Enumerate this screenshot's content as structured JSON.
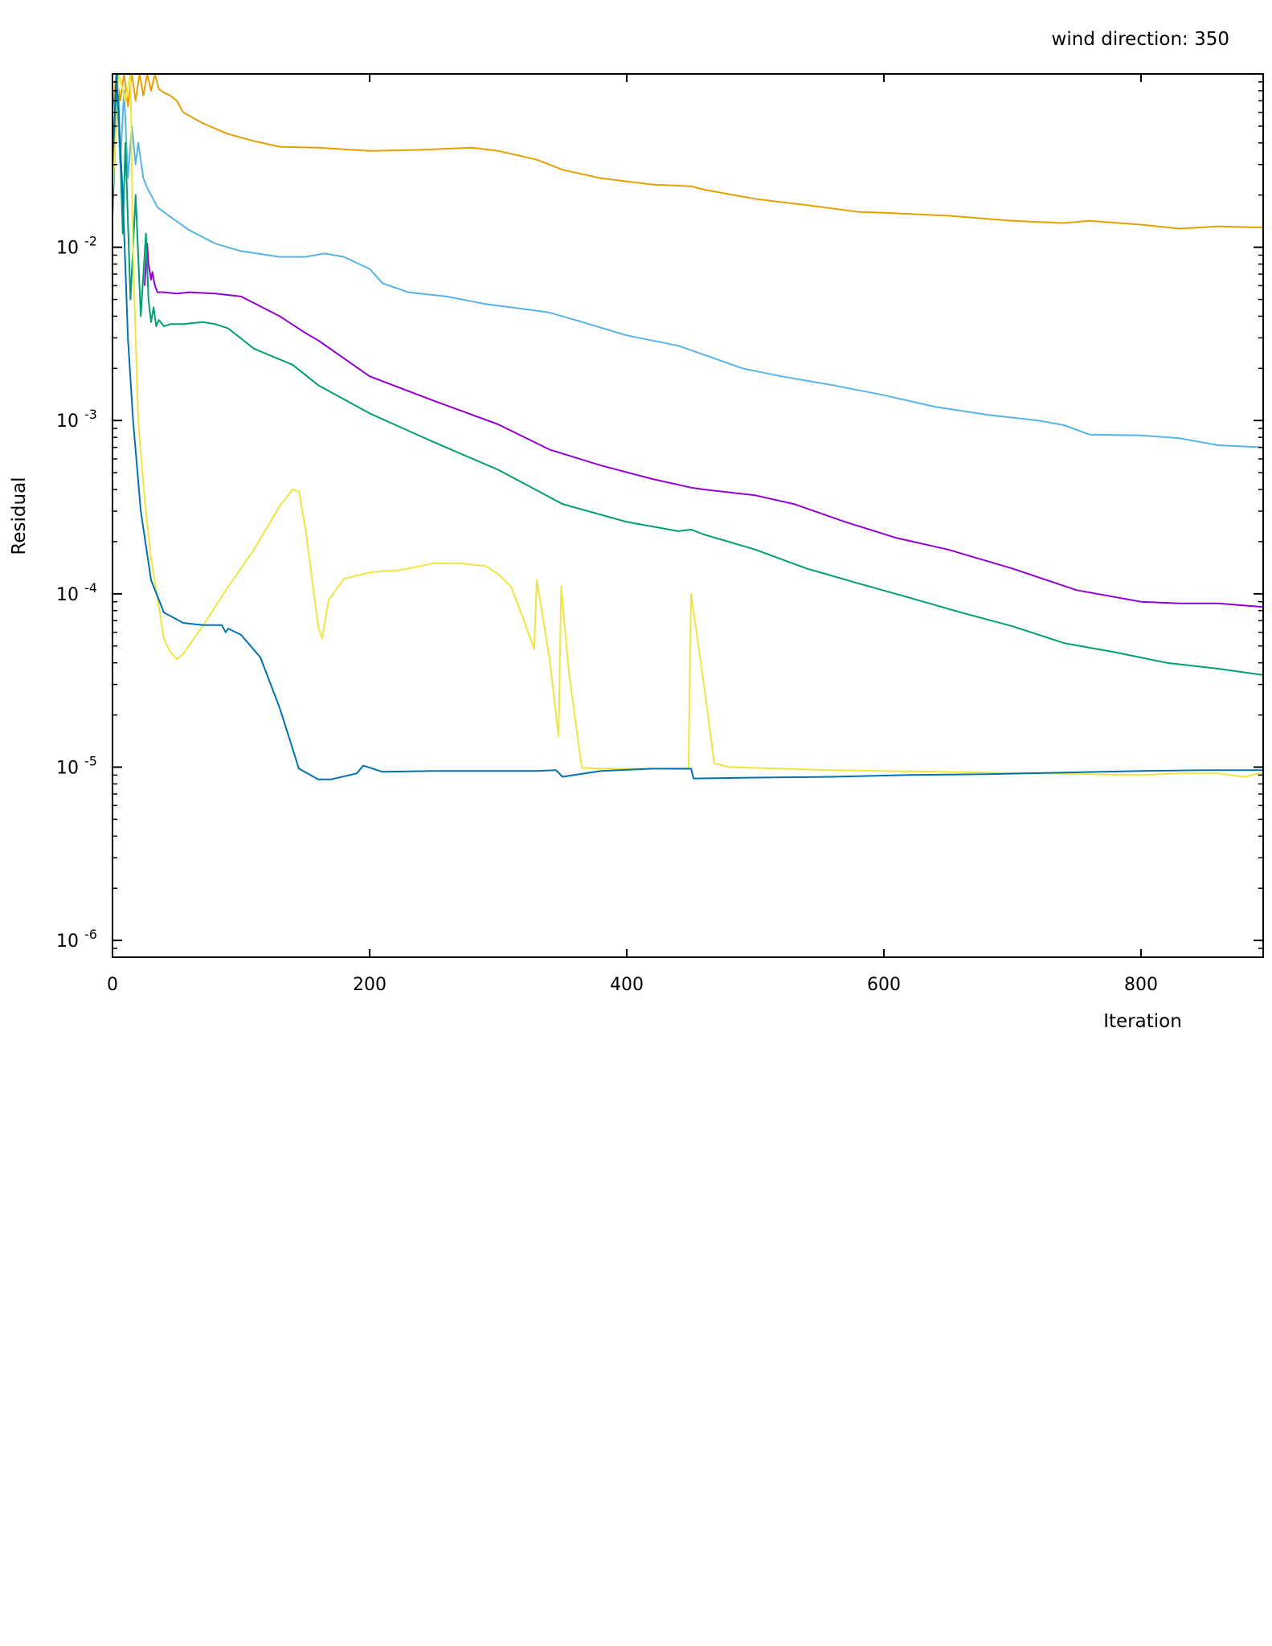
{
  "chart_data": {
    "type": "line",
    "title": "wind direction: 350",
    "xlabel": "Iteration",
    "ylabel": "Residual",
    "xlim": [
      0,
      895
    ],
    "ylim": [
      8e-07,
      0.1
    ],
    "yscale": "log",
    "grid": false,
    "legend": "none",
    "x_ticks": [
      {
        "value": 0,
        "label": "0"
      },
      {
        "value": 200,
        "label": "200"
      },
      {
        "value": 400,
        "label": "400"
      },
      {
        "value": 600,
        "label": "600"
      },
      {
        "value": 800,
        "label": "800"
      }
    ],
    "y_ticks": [
      {
        "value": 0.01,
        "base": "10",
        "exp": "-2"
      },
      {
        "value": 0.001,
        "base": "10",
        "exp": "-3"
      },
      {
        "value": 0.0001,
        "base": "10",
        "exp": "-4"
      },
      {
        "value": 1e-05,
        "base": "10",
        "exp": "-5"
      },
      {
        "value": 1e-06,
        "base": "10",
        "exp": "-6"
      }
    ],
    "series": [
      {
        "color": "#e69f00",
        "points": [
          [
            0,
            0.06
          ],
          [
            3,
            0.1
          ],
          [
            6,
            0.07
          ],
          [
            9,
            0.1
          ],
          [
            12,
            0.065
          ],
          [
            15,
            0.1
          ],
          [
            18,
            0.07
          ],
          [
            21,
            0.1
          ],
          [
            24,
            0.075
          ],
          [
            27,
            0.1
          ],
          [
            30,
            0.08
          ],
          [
            33,
            0.1
          ],
          [
            36,
            0.082
          ],
          [
            40,
            0.078
          ],
          [
            45,
            0.075
          ],
          [
            50,
            0.07
          ],
          [
            55,
            0.06
          ],
          [
            70,
            0.052
          ],
          [
            90,
            0.045
          ],
          [
            110,
            0.041
          ],
          [
            130,
            0.038
          ],
          [
            160,
            0.0375
          ],
          [
            200,
            0.036
          ],
          [
            240,
            0.0365
          ],
          [
            280,
            0.0375
          ],
          [
            300,
            0.036
          ],
          [
            330,
            0.032
          ],
          [
            350,
            0.028
          ],
          [
            380,
            0.025
          ],
          [
            420,
            0.023
          ],
          [
            450,
            0.0225
          ],
          [
            460,
            0.0215
          ],
          [
            500,
            0.019
          ],
          [
            540,
            0.0175
          ],
          [
            580,
            0.016
          ],
          [
            600,
            0.0158
          ],
          [
            650,
            0.0152
          ],
          [
            700,
            0.0142
          ],
          [
            740,
            0.0138
          ],
          [
            760,
            0.0142
          ],
          [
            800,
            0.0135
          ],
          [
            830,
            0.0128
          ],
          [
            860,
            0.0132
          ],
          [
            895,
            0.013
          ]
        ]
      },
      {
        "color": "#56b4e9",
        "points": [
          [
            0,
            0.02
          ],
          [
            3,
            0.1
          ],
          [
            6,
            0.03
          ],
          [
            9,
            0.08
          ],
          [
            12,
            0.025
          ],
          [
            15,
            0.05
          ],
          [
            18,
            0.03
          ],
          [
            20,
            0.04
          ],
          [
            24,
            0.025
          ],
          [
            27,
            0.022
          ],
          [
            30,
            0.02
          ],
          [
            35,
            0.017
          ],
          [
            45,
            0.015
          ],
          [
            60,
            0.0125
          ],
          [
            80,
            0.0105
          ],
          [
            100,
            0.0095
          ],
          [
            130,
            0.0088
          ],
          [
            150,
            0.0088
          ],
          [
            165,
            0.0092
          ],
          [
            180,
            0.0088
          ],
          [
            200,
            0.0075
          ],
          [
            210,
            0.0062
          ],
          [
            230,
            0.0055
          ],
          [
            260,
            0.0052
          ],
          [
            290,
            0.0047
          ],
          [
            320,
            0.0044
          ],
          [
            340,
            0.0042
          ],
          [
            360,
            0.0038
          ],
          [
            400,
            0.0031
          ],
          [
            440,
            0.0027
          ],
          [
            460,
            0.0024
          ],
          [
            490,
            0.002
          ],
          [
            520,
            0.0018
          ],
          [
            560,
            0.0016
          ],
          [
            600,
            0.0014
          ],
          [
            640,
            0.0012
          ],
          [
            680,
            0.00108
          ],
          [
            720,
            0.001
          ],
          [
            740,
            0.00094
          ],
          [
            760,
            0.00083
          ],
          [
            800,
            0.00082
          ],
          [
            830,
            0.00079
          ],
          [
            860,
            0.00072
          ],
          [
            895,
            0.0007
          ]
        ]
      },
      {
        "color": "#9400d3",
        "points": [
          [
            25,
            0.006
          ],
          [
            27,
            0.0105
          ],
          [
            28,
            0.008
          ],
          [
            30,
            0.0065
          ],
          [
            31,
            0.0072
          ],
          [
            33,
            0.006
          ],
          [
            35,
            0.0055
          ],
          [
            40,
            0.0055
          ],
          [
            50,
            0.0054
          ],
          [
            60,
            0.0055
          ],
          [
            80,
            0.0054
          ],
          [
            100,
            0.0052
          ],
          [
            130,
            0.004
          ],
          [
            150,
            0.0032
          ],
          [
            160,
            0.0029
          ],
          [
            200,
            0.0018
          ],
          [
            250,
            0.0013
          ],
          [
            300,
            0.00095
          ],
          [
            340,
            0.00068
          ],
          [
            380,
            0.00055
          ],
          [
            420,
            0.00046
          ],
          [
            450,
            0.00041
          ],
          [
            460,
            0.0004
          ],
          [
            500,
            0.00037
          ],
          [
            530,
            0.00033
          ],
          [
            570,
            0.00026
          ],
          [
            610,
            0.00021
          ],
          [
            650,
            0.00018
          ],
          [
            700,
            0.00014
          ],
          [
            750,
            0.000105
          ],
          [
            800,
            9e-05
          ],
          [
            830,
            8.8e-05
          ],
          [
            860,
            8.8e-05
          ],
          [
            895,
            8.4e-05
          ]
        ]
      },
      {
        "color": "#009e73",
        "points": [
          [
            0,
            0.015
          ],
          [
            4,
            0.1
          ],
          [
            8,
            0.012
          ],
          [
            10,
            0.04
          ],
          [
            14,
            0.005
          ],
          [
            18,
            0.02
          ],
          [
            22,
            0.004
          ],
          [
            26,
            0.012
          ],
          [
            28,
            0.005
          ],
          [
            30,
            0.0037
          ],
          [
            32,
            0.0045
          ],
          [
            34,
            0.0035
          ],
          [
            36,
            0.0038
          ],
          [
            40,
            0.0035
          ],
          [
            45,
            0.0036
          ],
          [
            55,
            0.0036
          ],
          [
            70,
            0.0037
          ],
          [
            80,
            0.0036
          ],
          [
            90,
            0.0034
          ],
          [
            110,
            0.0026
          ],
          [
            140,
            0.0021
          ],
          [
            160,
            0.0016
          ],
          [
            200,
            0.0011
          ],
          [
            250,
            0.00075
          ],
          [
            300,
            0.00052
          ],
          [
            350,
            0.00033
          ],
          [
            400,
            0.00026
          ],
          [
            440,
            0.00023
          ],
          [
            450,
            0.000235
          ],
          [
            460,
            0.00022
          ],
          [
            500,
            0.00018
          ],
          [
            540,
            0.00014
          ],
          [
            580,
            0.000115
          ],
          [
            620,
            9.5e-05
          ],
          [
            660,
            7.8e-05
          ],
          [
            700,
            6.5e-05
          ],
          [
            740,
            5.2e-05
          ],
          [
            780,
            4.6e-05
          ],
          [
            820,
            4e-05
          ],
          [
            860,
            3.7e-05
          ],
          [
            895,
            3.4e-05
          ]
        ]
      },
      {
        "color": "#f0e442",
        "points": [
          [
            0,
            0.02
          ],
          [
            5,
            0.1
          ],
          [
            10,
            0.07
          ],
          [
            14,
            0.1
          ],
          [
            16,
            0.009
          ],
          [
            18,
            0.003
          ],
          [
            20,
            0.001
          ],
          [
            25,
            0.00035
          ],
          [
            30,
            0.00016
          ],
          [
            40,
            5.5e-05
          ],
          [
            45,
            4.6e-05
          ],
          [
            50,
            4.2e-05
          ],
          [
            55,
            4.5e-05
          ],
          [
            70,
            6.5e-05
          ],
          [
            90,
            0.00011
          ],
          [
            110,
            0.00018
          ],
          [
            130,
            0.00032
          ],
          [
            140,
            0.0004
          ],
          [
            145,
            0.00039
          ],
          [
            150,
            0.00024
          ],
          [
            160,
            6.5e-05
          ],
          [
            163,
            5.5e-05
          ],
          [
            168,
            9.2e-05
          ],
          [
            180,
            0.000122
          ],
          [
            200,
            0.000133
          ],
          [
            210,
            0.000135
          ],
          [
            220,
            0.000136
          ],
          [
            230,
            0.00014
          ],
          [
            250,
            0.00015
          ],
          [
            270,
            0.00015
          ],
          [
            290,
            0.000145
          ],
          [
            300,
            0.00013
          ],
          [
            310,
            0.00011
          ],
          [
            320,
            7e-05
          ],
          [
            328,
            4.8e-05
          ],
          [
            330,
            0.00012
          ],
          [
            340,
            4.2e-05
          ],
          [
            347,
            1.5e-05
          ],
          [
            349,
            0.00011
          ],
          [
            355,
            3.5e-05
          ],
          [
            365,
            9.9e-06
          ],
          [
            380,
            9.8e-06
          ],
          [
            400,
            9.8e-06
          ],
          [
            420,
            9.8e-06
          ],
          [
            448,
            9.7e-06
          ],
          [
            450,
            0.0001
          ],
          [
            460,
            3e-05
          ],
          [
            468,
            1.05e-05
          ],
          [
            480,
            1e-05
          ],
          [
            520,
            9.8e-06
          ],
          [
            560,
            9.6e-06
          ],
          [
            600,
            9.5e-06
          ],
          [
            640,
            9.4e-06
          ],
          [
            680,
            9.3e-06
          ],
          [
            720,
            9.2e-06
          ],
          [
            760,
            9.1e-06
          ],
          [
            800,
            9e-06
          ],
          [
            830,
            9.2e-06
          ],
          [
            860,
            9.2e-06
          ],
          [
            880,
            8.8e-06
          ],
          [
            895,
            9.3e-06
          ]
        ]
      },
      {
        "color": "#0072b2",
        "points": [
          [
            0,
            0.03
          ],
          [
            3,
            0.1
          ],
          [
            8,
            0.02
          ],
          [
            12,
            0.003
          ],
          [
            16,
            0.001
          ],
          [
            22,
            0.0003
          ],
          [
            30,
            0.00012
          ],
          [
            40,
            7.8e-05
          ],
          [
            55,
            6.8e-05
          ],
          [
            70,
            6.6e-05
          ],
          [
            85,
            6.6e-05
          ],
          [
            88,
            6e-05
          ],
          [
            90,
            6.3e-05
          ],
          [
            100,
            5.8e-05
          ],
          [
            115,
            4.3e-05
          ],
          [
            130,
            2.2e-05
          ],
          [
            145,
            9.8e-06
          ],
          [
            160,
            8.5e-06
          ],
          [
            170,
            8.5e-06
          ],
          [
            190,
            9.2e-06
          ],
          [
            195,
            1.02e-05
          ],
          [
            210,
            9.4e-06
          ],
          [
            250,
            9.5e-06
          ],
          [
            300,
            9.5e-06
          ],
          [
            330,
            9.5e-06
          ],
          [
            345,
            9.6e-06
          ],
          [
            350,
            8.8e-06
          ],
          [
            380,
            9.5e-06
          ],
          [
            420,
            9.8e-06
          ],
          [
            450,
            9.8e-06
          ],
          [
            452,
            8.6e-06
          ],
          [
            500,
            8.7e-06
          ],
          [
            560,
            8.8e-06
          ],
          [
            620,
            9e-06
          ],
          [
            680,
            9.1e-06
          ],
          [
            740,
            9.3e-06
          ],
          [
            800,
            9.5e-06
          ],
          [
            850,
            9.6e-06
          ],
          [
            895,
            9.6e-06
          ]
        ]
      }
    ]
  }
}
